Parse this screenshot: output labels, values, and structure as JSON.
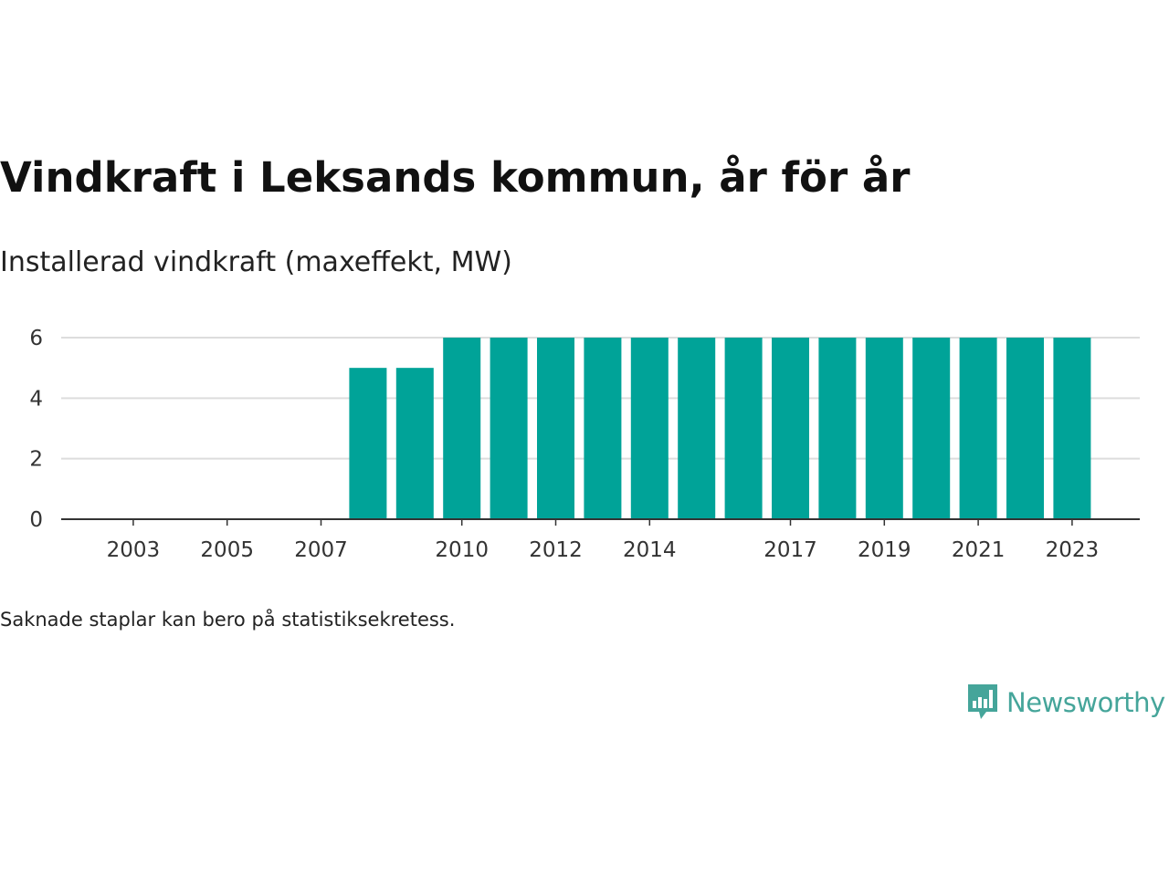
{
  "title": "Vindkraft i Leksands kommun, år för år",
  "subtitle": "Installerad vindkraft (maxeffekt, MW)",
  "footnote": "Saknade staplar kan bero på statistiksekretess.",
  "brand": {
    "name": "Newsworthy",
    "icon": "newsworthy-logo-icon",
    "color": "#45a59a"
  },
  "colors": {
    "bar": "#00a398",
    "grid": "#dddddd",
    "axis": "#333333"
  },
  "chart_data": {
    "type": "bar",
    "categories": [
      "2002",
      "2003",
      "2004",
      "2005",
      "2006",
      "2007",
      "2008",
      "2009",
      "2010",
      "2011",
      "2012",
      "2013",
      "2014",
      "2015",
      "2016",
      "2017",
      "2018",
      "2019",
      "2020",
      "2021",
      "2022",
      "2023"
    ],
    "values": [
      0,
      0,
      0,
      0,
      0,
      0,
      5,
      5,
      6,
      6,
      6,
      6,
      6,
      6,
      6,
      6,
      6,
      6,
      6,
      6,
      6,
      6
    ],
    "x_tick_labels": [
      "2003",
      "2005",
      "2007",
      "2010",
      "2012",
      "2014",
      "2017",
      "2019",
      "2021",
      "2023"
    ],
    "y_ticks": [
      0,
      2,
      4,
      6
    ],
    "ylim": [
      0,
      6
    ],
    "grid": true,
    "xlabel": "",
    "ylabel": ""
  }
}
